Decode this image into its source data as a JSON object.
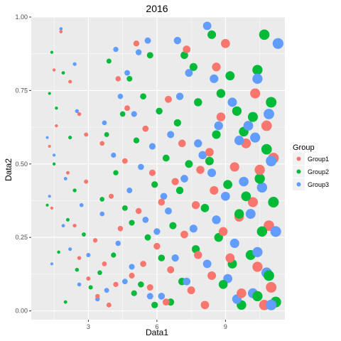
{
  "chart_data": {
    "type": "scatter",
    "title": "2016",
    "xlabel": "Data1",
    "ylabel": "Data2",
    "xlim": [
      0.5,
      11.6
    ],
    "ylim": [
      -0.03,
      1.0
    ],
    "x_ticks": [
      3,
      6,
      9
    ],
    "x_tick_labels": [
      "3",
      "6",
      "9"
    ],
    "y_ticks": [
      0,
      0.25,
      0.5,
      0.75,
      1.0
    ],
    "y_tick_labels": [
      "0.00",
      "0.25",
      "0.50",
      "0.75",
      "1.00"
    ],
    "grid": true,
    "panel_background": "#ebebeb",
    "grid_color": "#ffffff",
    "point_size_note": "size grows with Data1",
    "legend": {
      "title": "Group",
      "position": "right",
      "entries": [
        {
          "label": "Group1",
          "color": "#F8766D"
        },
        {
          "label": "Group2",
          "color": "#00BA38"
        },
        {
          "label": "Group3",
          "color": "#619CFF"
        }
      ]
    },
    "series": [
      {
        "name": "Group1",
        "color": "#F8766D",
        "points": [
          [
            1.8,
            0.95
          ],
          [
            1.5,
            0.82
          ],
          [
            2.2,
            0.78
          ],
          [
            2.6,
            0.67
          ],
          [
            1.6,
            0.63
          ],
          [
            1.3,
            0.56
          ],
          [
            2.9,
            0.6
          ],
          [
            2.1,
            0.47
          ],
          [
            2.9,
            0.44
          ],
          [
            1.4,
            0.35
          ],
          [
            2.4,
            0.29
          ],
          [
            3.3,
            0.24
          ],
          [
            2.6,
            0.18
          ],
          [
            3.0,
            0.11
          ],
          [
            3.4,
            0.05
          ],
          [
            3.9,
            0.02
          ],
          [
            4.3,
            0.79
          ],
          [
            5.1,
            0.91
          ],
          [
            4.7,
            0.69
          ],
          [
            5.5,
            0.62
          ],
          [
            3.6,
            0.57
          ],
          [
            4.6,
            0.51
          ],
          [
            5.8,
            0.47
          ],
          [
            4.0,
            0.39
          ],
          [
            5.2,
            0.34
          ],
          [
            4.4,
            0.28
          ],
          [
            6.0,
            0.22
          ],
          [
            3.7,
            0.16
          ],
          [
            4.9,
            0.12
          ],
          [
            5.7,
            0.08
          ],
          [
            6.4,
            0.03
          ],
          [
            6.5,
            0.72
          ],
          [
            7.3,
            0.89
          ],
          [
            7.1,
            0.57
          ],
          [
            6.8,
            0.44
          ],
          [
            7.7,
            0.36
          ],
          [
            7.2,
            0.26
          ],
          [
            7.8,
            0.19
          ],
          [
            6.6,
            0.14
          ],
          [
            7.5,
            0.07
          ],
          [
            8.1,
            0.02
          ],
          [
            8.6,
            0.83
          ],
          [
            9.0,
            0.91
          ],
          [
            8.8,
            0.66
          ],
          [
            8.3,
            0.54
          ],
          [
            9.4,
            0.49
          ],
          [
            8.5,
            0.41
          ],
          [
            9.6,
            0.32
          ],
          [
            8.9,
            0.27
          ],
          [
            9.2,
            0.18
          ],
          [
            8.4,
            0.12
          ],
          [
            9.7,
            0.06
          ],
          [
            10.3,
            0.74
          ],
          [
            10.8,
            0.63
          ],
          [
            10.5,
            0.48
          ],
          [
            11.1,
            0.52
          ],
          [
            10.2,
            0.37
          ],
          [
            10.9,
            0.29
          ],
          [
            10.4,
            0.15
          ],
          [
            11.0,
            0.08
          ],
          [
            10.7,
            0.02
          ],
          [
            9.9,
            0.57
          ],
          [
            7.9,
            0.48
          ],
          [
            6.2,
            0.37
          ],
          [
            5.4,
            0.16
          ],
          [
            4.2,
            0.09
          ]
        ]
      },
      {
        "name": "Group2",
        "color": "#00BA38",
        "points": [
          [
            1.4,
            0.88
          ],
          [
            1.9,
            0.81
          ],
          [
            1.3,
            0.74
          ],
          [
            1.6,
            0.69
          ],
          [
            2.2,
            0.59
          ],
          [
            1.5,
            0.5
          ],
          [
            2.4,
            0.41
          ],
          [
            1.2,
            0.36
          ],
          [
            2.1,
            0.31
          ],
          [
            2.8,
            0.26
          ],
          [
            1.7,
            0.2
          ],
          [
            2.5,
            0.14
          ],
          [
            3.1,
            0.08
          ],
          [
            2.0,
            0.03
          ],
          [
            3.9,
            0.85
          ],
          [
            5.7,
            0.87
          ],
          [
            4.8,
            0.79
          ],
          [
            5.4,
            0.73
          ],
          [
            4.5,
            0.67
          ],
          [
            6.1,
            0.68
          ],
          [
            3.8,
            0.6
          ],
          [
            5.1,
            0.58
          ],
          [
            4.2,
            0.47
          ],
          [
            5.9,
            0.43
          ],
          [
            3.6,
            0.38
          ],
          [
            4.9,
            0.3
          ],
          [
            5.6,
            0.25
          ],
          [
            4.1,
            0.19
          ],
          [
            6.2,
            0.18
          ],
          [
            3.5,
            0.13
          ],
          [
            5.0,
            0.06
          ],
          [
            5.9,
            0.02
          ],
          [
            7.2,
            0.87
          ],
          [
            7.6,
            0.83
          ],
          [
            6.9,
            0.64
          ],
          [
            7.8,
            0.71
          ],
          [
            7.4,
            0.5
          ],
          [
            7.0,
            0.41
          ],
          [
            6.7,
            0.29
          ],
          [
            7.7,
            0.21
          ],
          [
            7.1,
            0.1
          ],
          [
            6.6,
            0.03
          ],
          [
            8.4,
            0.94
          ],
          [
            9.2,
            0.8
          ],
          [
            8.8,
            0.74
          ],
          [
            9.5,
            0.68
          ],
          [
            8.6,
            0.6
          ],
          [
            9.8,
            0.61
          ],
          [
            8.3,
            0.51
          ],
          [
            9.1,
            0.43
          ],
          [
            9.6,
            0.33
          ],
          [
            8.7,
            0.25
          ],
          [
            9.3,
            0.16
          ],
          [
            8.9,
            0.09
          ],
          [
            9.7,
            0.02
          ],
          [
            10.7,
            0.94
          ],
          [
            10.4,
            0.82
          ],
          [
            11.0,
            0.71
          ],
          [
            10.2,
            0.66
          ],
          [
            10.8,
            0.55
          ],
          [
            10.5,
            0.45
          ],
          [
            11.1,
            0.37
          ],
          [
            10.6,
            0.27
          ],
          [
            10.1,
            0.19
          ],
          [
            10.9,
            0.12
          ],
          [
            10.4,
            0.05
          ],
          [
            11.2,
            0.03
          ],
          [
            9.9,
            0.39
          ],
          [
            8.1,
            0.35
          ],
          [
            6.4,
            0.52
          ],
          [
            5.3,
            0.09
          ],
          [
            4.6,
            0.35
          ]
        ]
      },
      {
        "name": "Group3",
        "color": "#619CFF",
        "points": [
          [
            1.8,
            0.96
          ],
          [
            2.4,
            0.84
          ],
          [
            1.2,
            0.59
          ],
          [
            2.5,
            0.68
          ],
          [
            1.5,
            0.53
          ],
          [
            2.0,
            0.45
          ],
          [
            1.3,
            0.39
          ],
          [
            2.7,
            0.36
          ],
          [
            1.9,
            0.29
          ],
          [
            2.2,
            0.21
          ],
          [
            1.4,
            0.16
          ],
          [
            3.0,
            0.19
          ],
          [
            2.6,
            0.09
          ],
          [
            3.4,
            0.04
          ],
          [
            4.2,
            0.89
          ],
          [
            4.7,
            0.81
          ],
          [
            5.2,
            0.88
          ],
          [
            5.6,
            0.92
          ],
          [
            4.4,
            0.73
          ],
          [
            5.0,
            0.67
          ],
          [
            3.7,
            0.64
          ],
          [
            5.8,
            0.56
          ],
          [
            4.1,
            0.53
          ],
          [
            5.3,
            0.49
          ],
          [
            4.8,
            0.41
          ],
          [
            3.6,
            0.33
          ],
          [
            5.5,
            0.31
          ],
          [
            4.3,
            0.23
          ],
          [
            6.0,
            0.27
          ],
          [
            4.9,
            0.15
          ],
          [
            3.8,
            0.07
          ],
          [
            5.7,
            0.05
          ],
          [
            6.9,
            0.92
          ],
          [
            7.4,
            0.81
          ],
          [
            7.0,
            0.73
          ],
          [
            6.6,
            0.6
          ],
          [
            7.8,
            0.57
          ],
          [
            7.2,
            0.45
          ],
          [
            6.5,
            0.34
          ],
          [
            7.6,
            0.28
          ],
          [
            6.8,
            0.18
          ],
          [
            7.3,
            0.1
          ],
          [
            6.2,
            0.05
          ],
          [
            8.2,
            0.97
          ],
          [
            8.5,
            0.79
          ],
          [
            9.3,
            0.71
          ],
          [
            8.7,
            0.63
          ],
          [
            9.6,
            0.58
          ],
          [
            8.4,
            0.47
          ],
          [
            9.0,
            0.39
          ],
          [
            9.8,
            0.44
          ],
          [
            8.6,
            0.31
          ],
          [
            9.4,
            0.23
          ],
          [
            8.2,
            0.16
          ],
          [
            9.1,
            0.11
          ],
          [
            9.5,
            0.04
          ],
          [
            10.4,
            0.79
          ],
          [
            10.9,
            0.67
          ],
          [
            10.3,
            0.59
          ],
          [
            11.0,
            0.51
          ],
          [
            10.6,
            0.42
          ],
          [
            10.1,
            0.33
          ],
          [
            11.2,
            0.27
          ],
          [
            10.4,
            0.2
          ],
          [
            10.8,
            0.13
          ],
          [
            10.2,
            0.06
          ],
          [
            11.0,
            0.02
          ],
          [
            11.3,
            0.91
          ],
          [
            10.0,
            0.63
          ],
          [
            8.0,
            0.53
          ],
          [
            6.3,
            0.39
          ],
          [
            4.6,
            0.1
          ]
        ]
      }
    ]
  }
}
